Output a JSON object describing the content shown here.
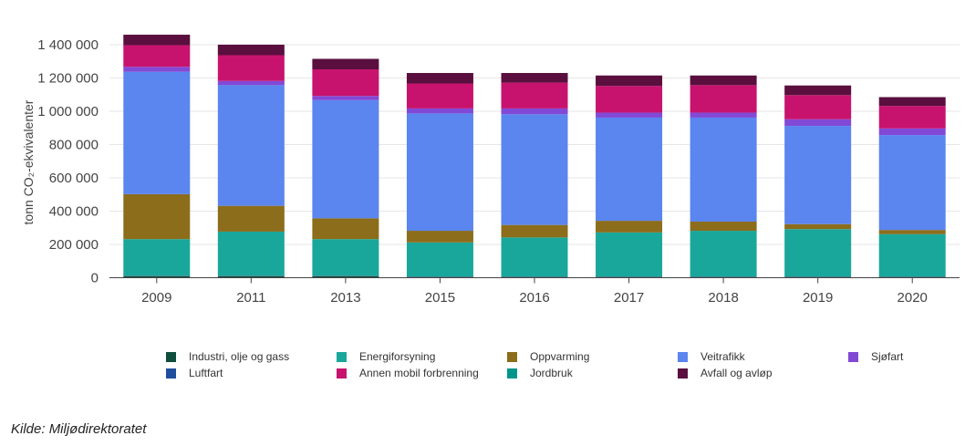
{
  "chart_data": {
    "type": "bar",
    "stacked": true,
    "ylabel": "tonn CO₂-ekvivalenter",
    "ylim": [
      0,
      1500000
    ],
    "yticks": [
      0,
      200000,
      400000,
      600000,
      800000,
      1000000,
      1200000,
      1400000
    ],
    "ytick_labels": [
      "0",
      "200 000",
      "400 000",
      "600 000",
      "800 000",
      "1 000 000",
      "1 200 000",
      "1 400 000"
    ],
    "grid": true,
    "legend_position": "bottom",
    "categories": [
      "2009",
      "2011",
      "2013",
      "2015",
      "2016",
      "2017",
      "2018",
      "2019",
      "2020"
    ],
    "series": [
      {
        "name": "Industri, olje og gass",
        "color": "#0f4d3c",
        "values": [
          10000,
          10000,
          10000,
          5000,
          5000,
          5000,
          5000,
          5000,
          5000
        ]
      },
      {
        "name": "Luftfart",
        "color": "#1f4e9e",
        "values": [
          2000,
          2000,
          2000,
          2000,
          2000,
          2000,
          2000,
          2000,
          2000
        ]
      },
      {
        "name": "Energiforsyning",
        "color": "#1aa79b",
        "values": [
          220000,
          265000,
          220000,
          205000,
          235000,
          265000,
          275000,
          285000,
          255000
        ]
      },
      {
        "name": "Annen mobil forbrenning",
        "color": "#c7136e",
        "values": [
          0,
          0,
          0,
          0,
          0,
          0,
          0,
          0,
          0
        ]
      },
      {
        "name": "Oppvarming",
        "color": "#8c6d1b",
        "values": [
          270000,
          155000,
          125000,
          70000,
          75000,
          70000,
          55000,
          30000,
          25000
        ]
      },
      {
        "name": "Jordbruk",
        "color": "#00958c",
        "values": [
          0,
          0,
          0,
          0,
          0,
          0,
          0,
          0,
          0
        ]
      },
      {
        "name": "Veitrafikk",
        "color": "#5b85ef",
        "values": [
          735000,
          725000,
          710000,
          705000,
          665000,
          620000,
          625000,
          590000,
          570000
        ]
      },
      {
        "name": "Sjøfart",
        "color": "#8249d6",
        "values": [
          30000,
          25000,
          25000,
          30000,
          35000,
          30000,
          30000,
          40000,
          40000
        ]
      },
      {
        "name": "Annen mobil forbrenning (stack)",
        "color": "#c7136e",
        "values": [
          130000,
          155000,
          160000,
          150000,
          155000,
          160000,
          165000,
          145000,
          135000
        ],
        "legend": false
      },
      {
        "name": "Avfall og avløp",
        "color": "#5a0f3e",
        "values": [
          63000,
          63000,
          63000,
          63000,
          58000,
          63000,
          58000,
          58000,
          53000
        ]
      }
    ]
  },
  "legend": [
    {
      "label": "Industri, olje og gass",
      "color": "#0f4d3c"
    },
    {
      "label": "Energiforsyning",
      "color": "#1aa79b"
    },
    {
      "label": "Oppvarming",
      "color": "#8c6d1b"
    },
    {
      "label": "Veitrafikk",
      "color": "#5b85ef"
    },
    {
      "label": "Sjøfart",
      "color": "#8249d6"
    },
    {
      "label": "Luftfart",
      "color": "#1f4e9e"
    },
    {
      "label": "Annen mobil forbrenning",
      "color": "#c7136e"
    },
    {
      "label": "Jordbruk",
      "color": "#00958c"
    },
    {
      "label": "Avfall og avløp",
      "color": "#5a0f3e"
    }
  ],
  "source": "Kilde: Miljødirektoratet"
}
